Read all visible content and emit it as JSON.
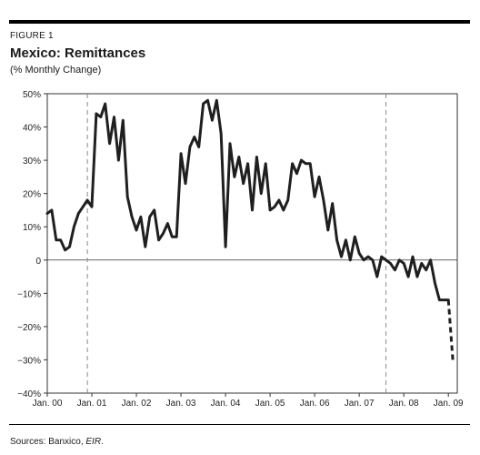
{
  "figure": {
    "label": "FIGURE 1",
    "title": "Mexico: Remittances",
    "subtitle": "(% Monthly Change)",
    "source_prefix": "Sources: Banxico, ",
    "source_italic": "EIR",
    "source_suffix": "."
  },
  "chart_data": {
    "type": "line",
    "title": "Mexico: Remittances",
    "subtitle": "(% Monthly Change)",
    "ylim": [
      -40,
      50
    ],
    "yticks": [
      -40,
      -30,
      -20,
      -10,
      0,
      10,
      20,
      30,
      40,
      50
    ],
    "ytick_labels": [
      "−40%",
      "−30%",
      "−20%",
      "−10%",
      "0",
      "10%",
      "20%",
      "30%",
      "40%",
      "50%"
    ],
    "xlim": [
      2000,
      2009.2
    ],
    "xticks": [
      2000,
      2001,
      2002,
      2003,
      2004,
      2005,
      2006,
      2007,
      2008,
      2009
    ],
    "xtick_labels": [
      "Jan. 00",
      "Jan. 01",
      "Jan. 02",
      "Jan. 03",
      "Jan. 04",
      "Jan. 05",
      "Jan. 06",
      "Jan. 07",
      "Jan. 08",
      "Jan. 09"
    ],
    "reference_lines": [
      2000.9,
      2007.6
    ],
    "zero_line": 0,
    "grid": false,
    "line_color": "#1f1f1f",
    "reference_color": "#888888",
    "series": [
      {
        "style": "solid",
        "x": [
          2000.0,
          2000.1,
          2000.2,
          2000.3,
          2000.4,
          2000.5,
          2000.6,
          2000.7,
          2000.8,
          2000.9,
          2001.0,
          2001.1,
          2001.2,
          2001.3,
          2001.4,
          2001.5,
          2001.6,
          2001.7,
          2001.8,
          2001.9,
          2002.0,
          2002.1,
          2002.2,
          2002.3,
          2002.4,
          2002.5,
          2002.6,
          2002.7,
          2002.8,
          2002.9,
          2003.0,
          2003.1,
          2003.2,
          2003.3,
          2003.4,
          2003.5,
          2003.6,
          2003.7,
          2003.8,
          2003.9,
          2004.0,
          2004.1,
          2004.2,
          2004.3,
          2004.4,
          2004.5,
          2004.6,
          2004.7,
          2004.8,
          2004.9,
          2005.0,
          2005.1,
          2005.2,
          2005.3,
          2005.4,
          2005.5,
          2005.6,
          2005.7,
          2005.8,
          2005.9,
          2006.0,
          2006.1,
          2006.2,
          2006.3,
          2006.4,
          2006.5,
          2006.6,
          2006.7,
          2006.8,
          2006.9,
          2007.0,
          2007.1,
          2007.2,
          2007.3,
          2007.4,
          2007.5,
          2007.6,
          2007.7,
          2007.8,
          2007.9,
          2008.0,
          2008.1,
          2008.2,
          2008.3,
          2008.4,
          2008.5,
          2008.6,
          2008.7,
          2008.8,
          2008.9,
          2009.0
        ],
        "y": [
          14,
          15,
          6,
          6,
          3,
          4,
          10,
          14,
          16,
          18,
          16,
          44,
          43,
          47,
          35,
          43,
          30,
          42,
          19,
          13,
          9,
          13,
          4,
          13,
          15,
          6,
          8,
          11,
          7,
          7,
          32,
          23,
          34,
          37,
          34,
          47,
          48,
          42,
          48,
          38,
          4,
          35,
          25,
          31,
          23,
          29,
          15,
          31,
          20,
          29,
          15,
          16,
          18,
          15,
          18,
          29,
          26,
          30,
          29,
          29,
          19,
          25,
          18,
          9,
          17,
          6,
          1,
          6,
          0,
          7,
          2,
          0,
          1,
          0,
          -5,
          1,
          0,
          -1,
          -3,
          0,
          -1,
          -5,
          1,
          -5,
          -1,
          -3,
          0,
          -7,
          -12,
          -12,
          -12
        ]
      },
      {
        "style": "dashed",
        "x": [
          2009.0,
          2009.1
        ],
        "y": [
          -12,
          -30
        ]
      }
    ]
  }
}
